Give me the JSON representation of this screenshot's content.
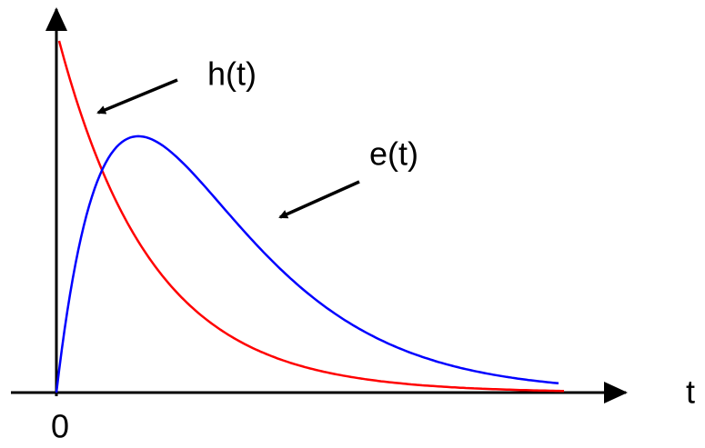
{
  "labels": {
    "h": "h(t)",
    "e": "e(t)",
    "t": "t",
    "origin": "0"
  }
}
